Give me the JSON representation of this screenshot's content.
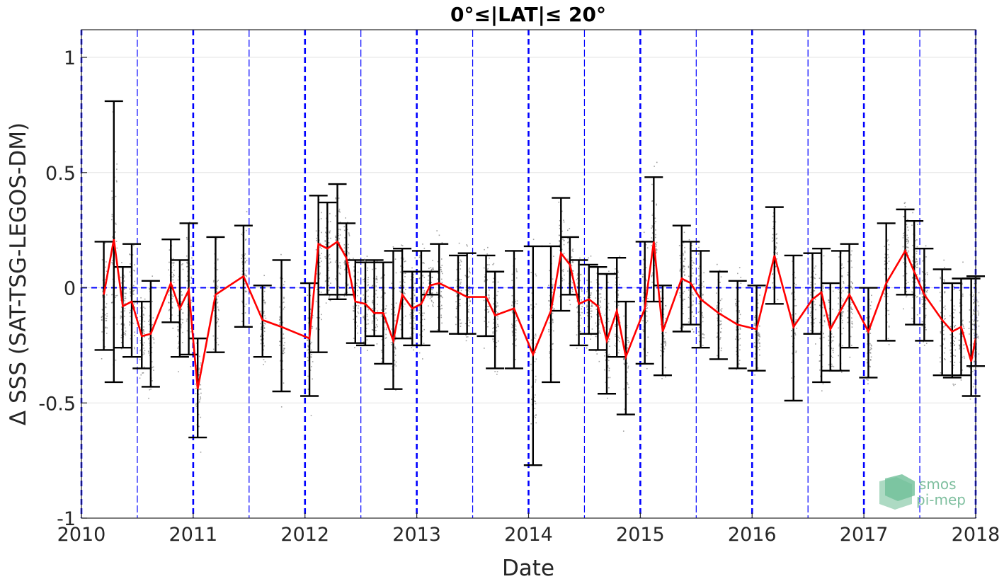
{
  "chart_data": {
    "type": "line",
    "title": "0°≤|LAT|≤ 20°",
    "xlabel": "Date",
    "ylabel": "Δ SSS (SAT-TSG-LEGOS-DM)",
    "xlim": [
      2010,
      2018
    ],
    "ylim": [
      -1,
      1.12
    ],
    "x_ticks": [
      "2010",
      "2011",
      "2012",
      "2013",
      "2014",
      "2015",
      "2016",
      "2017",
      "2018"
    ],
    "y_ticks": [
      {
        "value": 1,
        "label": "1"
      },
      {
        "value": 0.5,
        "label": "0.5"
      },
      {
        "value": 0,
        "label": "0"
      },
      {
        "value": -0.5,
        "label": "-0.5"
      },
      {
        "value": -1,
        "label": "-1"
      }
    ],
    "grid": "horizontal",
    "colors": {
      "mean_line": "#ff0000",
      "error_bars": "#000000",
      "scatter": "#808080",
      "year_lines": "#0000ff",
      "zero_line": "#0000ff"
    },
    "series": [
      {
        "values": [
          {
            "x": 2010.2,
            "y": -0.03,
            "lo": -0.27,
            "hi": 0.2
          },
          {
            "x": 2010.29,
            "y": 0.21,
            "lo": -0.41,
            "hi": 0.81
          },
          {
            "x": 2010.37,
            "y": -0.08,
            "lo": -0.26,
            "hi": 0.09
          },
          {
            "x": 2010.45,
            "y": -0.06,
            "lo": -0.3,
            "hi": 0.19
          },
          {
            "x": 2010.54,
            "y": -0.21,
            "lo": -0.35,
            "hi": -0.06
          },
          {
            "x": 2010.62,
            "y": -0.2,
            "lo": -0.43,
            "hi": 0.03
          },
          {
            "x": 2010.8,
            "y": 0.02,
            "lo": -0.15,
            "hi": 0.21
          },
          {
            "x": 2010.88,
            "y": -0.09,
            "lo": -0.3,
            "hi": 0.12
          },
          {
            "x": 2010.96,
            "y": -0.01,
            "lo": -0.29,
            "hi": 0.28
          },
          {
            "x": 2011.04,
            "y": -0.44,
            "lo": -0.65,
            "hi": -0.22
          },
          {
            "x": 2011.2,
            "y": -0.03,
            "lo": -0.28,
            "hi": 0.22
          },
          {
            "x": 2011.45,
            "y": 0.05,
            "lo": -0.17,
            "hi": 0.27
          },
          {
            "x": 2011.62,
            "y": -0.14,
            "lo": -0.3,
            "hi": 0.01
          },
          {
            "x": 2011.79,
            "y": -0.17,
            "lo": -0.45,
            "hi": 0.12
          },
          {
            "x": 2012.04,
            "y": -0.22,
            "lo": -0.47,
            "hi": 0.02
          },
          {
            "x": 2012.12,
            "y": 0.19,
            "lo": -0.28,
            "hi": 0.4
          },
          {
            "x": 2012.2,
            "y": 0.17,
            "lo": -0.03,
            "hi": 0.37
          },
          {
            "x": 2012.29,
            "y": 0.2,
            "lo": -0.05,
            "hi": 0.45
          },
          {
            "x": 2012.37,
            "y": 0.13,
            "lo": -0.03,
            "hi": 0.28
          },
          {
            "x": 2012.45,
            "y": -0.06,
            "lo": -0.24,
            "hi": 0.12
          },
          {
            "x": 2012.54,
            "y": -0.07,
            "lo": -0.25,
            "hi": 0.11
          },
          {
            "x": 2012.62,
            "y": -0.11,
            "lo": -0.21,
            "hi": 0.12
          },
          {
            "x": 2012.7,
            "y": -0.11,
            "lo": -0.33,
            "hi": 0.11
          },
          {
            "x": 2012.79,
            "y": -0.23,
            "lo": -0.44,
            "hi": 0.16
          },
          {
            "x": 2012.87,
            "y": -0.03,
            "lo": -0.22,
            "hi": 0.17
          },
          {
            "x": 2012.96,
            "y": -0.09,
            "lo": -0.25,
            "hi": 0.07
          },
          {
            "x": 2013.04,
            "y": -0.07,
            "lo": -0.25,
            "hi": 0.16
          },
          {
            "x": 2013.12,
            "y": 0.01,
            "lo": -0.03,
            "hi": 0.07
          },
          {
            "x": 2013.2,
            "y": 0.02,
            "lo": -0.19,
            "hi": 0.19
          },
          {
            "x": 2013.37,
            "y": -0.02,
            "lo": -0.2,
            "hi": 0.14
          },
          {
            "x": 2013.45,
            "y": -0.04,
            "lo": -0.2,
            "hi": 0.15
          },
          {
            "x": 2013.62,
            "y": -0.04,
            "lo": -0.21,
            "hi": 0.14
          },
          {
            "x": 2013.7,
            "y": -0.12,
            "lo": -0.35,
            "hi": 0.07
          },
          {
            "x": 2013.87,
            "y": -0.09,
            "lo": -0.35,
            "hi": 0.16
          },
          {
            "x": 2014.04,
            "y": -0.29,
            "lo": -0.77,
            "hi": 0.18
          },
          {
            "x": 2014.2,
            "y": -0.1,
            "lo": -0.41,
            "hi": 0.18
          },
          {
            "x": 2014.29,
            "y": 0.15,
            "lo": -0.1,
            "hi": 0.39
          },
          {
            "x": 2014.37,
            "y": 0.1,
            "lo": -0.03,
            "hi": 0.22
          },
          {
            "x": 2014.45,
            "y": -0.07,
            "lo": -0.25,
            "hi": 0.12
          },
          {
            "x": 2014.54,
            "y": -0.05,
            "lo": -0.2,
            "hi": 0.1
          },
          {
            "x": 2014.62,
            "y": -0.08,
            "lo": -0.27,
            "hi": 0.09
          },
          {
            "x": 2014.7,
            "y": -0.23,
            "lo": -0.46,
            "hi": 0.06
          },
          {
            "x": 2014.79,
            "y": -0.1,
            "lo": -0.3,
            "hi": 0.13
          },
          {
            "x": 2014.87,
            "y": -0.3,
            "lo": -0.55,
            "hi": -0.06
          },
          {
            "x": 2015.04,
            "y": -0.09,
            "lo": -0.33,
            "hi": 0.2
          },
          {
            "x": 2015.12,
            "y": 0.2,
            "lo": -0.06,
            "hi": 0.48
          },
          {
            "x": 2015.2,
            "y": -0.19,
            "lo": -0.38,
            "hi": 0.01
          },
          {
            "x": 2015.37,
            "y": 0.04,
            "lo": -0.19,
            "hi": 0.27
          },
          {
            "x": 2015.45,
            "y": 0.02,
            "lo": -0.16,
            "hi": 0.2
          },
          {
            "x": 2015.54,
            "y": -0.05,
            "lo": -0.26,
            "hi": 0.16
          },
          {
            "x": 2015.7,
            "y": -0.11,
            "lo": -0.31,
            "hi": 0.07
          },
          {
            "x": 2015.87,
            "y": -0.16,
            "lo": -0.35,
            "hi": 0.03
          },
          {
            "x": 2016.04,
            "y": -0.18,
            "lo": -0.36,
            "hi": 0.01
          },
          {
            "x": 2016.2,
            "y": 0.14,
            "lo": -0.07,
            "hi": 0.35
          },
          {
            "x": 2016.37,
            "y": -0.17,
            "lo": -0.49,
            "hi": 0.14
          },
          {
            "x": 2016.54,
            "y": -0.05,
            "lo": -0.2,
            "hi": 0.15
          },
          {
            "x": 2016.62,
            "y": -0.02,
            "lo": -0.41,
            "hi": 0.17
          },
          {
            "x": 2016.7,
            "y": -0.18,
            "lo": -0.36,
            "hi": 0.02
          },
          {
            "x": 2016.79,
            "y": -0.1,
            "lo": -0.36,
            "hi": 0.16
          },
          {
            "x": 2016.87,
            "y": -0.03,
            "lo": -0.26,
            "hi": 0.19
          },
          {
            "x": 2017.04,
            "y": -0.19,
            "lo": -0.39,
            "hi": 0.0
          },
          {
            "x": 2017.2,
            "y": 0.02,
            "lo": -0.23,
            "hi": 0.28
          },
          {
            "x": 2017.37,
            "y": 0.16,
            "lo": -0.03,
            "hi": 0.34
          },
          {
            "x": 2017.45,
            "y": 0.07,
            "lo": -0.16,
            "hi": 0.29
          },
          {
            "x": 2017.54,
            "y": -0.03,
            "lo": -0.23,
            "hi": 0.17
          },
          {
            "x": 2017.7,
            "y": -0.14,
            "lo": -0.38,
            "hi": 0.08
          },
          {
            "x": 2017.79,
            "y": -0.19,
            "lo": -0.39,
            "hi": 0.02
          },
          {
            "x": 2017.87,
            "y": -0.17,
            "lo": -0.38,
            "hi": 0.04
          },
          {
            "x": 2017.96,
            "y": -0.32,
            "lo": -0.47,
            "hi": 0.04
          },
          {
            "x": 2018.0,
            "y": -0.22,
            "lo": -0.34,
            "hi": 0.05
          }
        ]
      }
    ]
  },
  "logo": {
    "line1": "smos",
    "line2": "pi-mep"
  }
}
